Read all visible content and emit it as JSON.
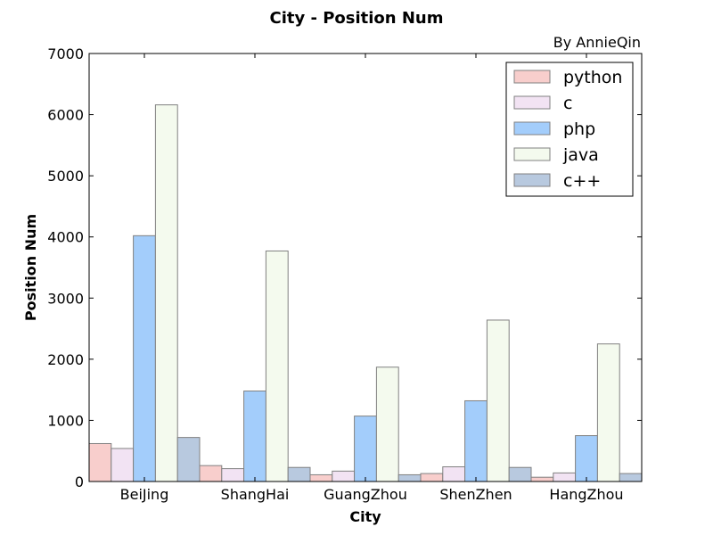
{
  "chart_data": {
    "type": "bar",
    "title": "City - Position Num",
    "subtitle": "By AnnieQin",
    "xlabel": "City",
    "ylabel": "Position Num",
    "categories": [
      "BeiJing",
      "ShangHai",
      "GuangZhou",
      "ShenZhen",
      "HangZhou"
    ],
    "ylim": [
      0,
      7000
    ],
    "yticks": [
      0,
      1000,
      2000,
      3000,
      4000,
      5000,
      6000,
      7000
    ],
    "grid": false,
    "legend_position": "top-right",
    "series": [
      {
        "name": "python",
        "color": "#f8cecc",
        "values": [
          620,
          260,
          110,
          130,
          70
        ]
      },
      {
        "name": "c",
        "color": "#f2e3f3",
        "values": [
          540,
          210,
          170,
          240,
          140
        ]
      },
      {
        "name": "php",
        "color": "#a3cdfb",
        "values": [
          4020,
          1480,
          1070,
          1320,
          750
        ]
      },
      {
        "name": "java",
        "color": "#f4faee",
        "values": [
          6160,
          3770,
          1870,
          2640,
          2250
        ]
      },
      {
        "name": "c++",
        "color": "#b8c9df",
        "values": [
          720,
          230,
          110,
          230,
          130
        ]
      }
    ]
  }
}
